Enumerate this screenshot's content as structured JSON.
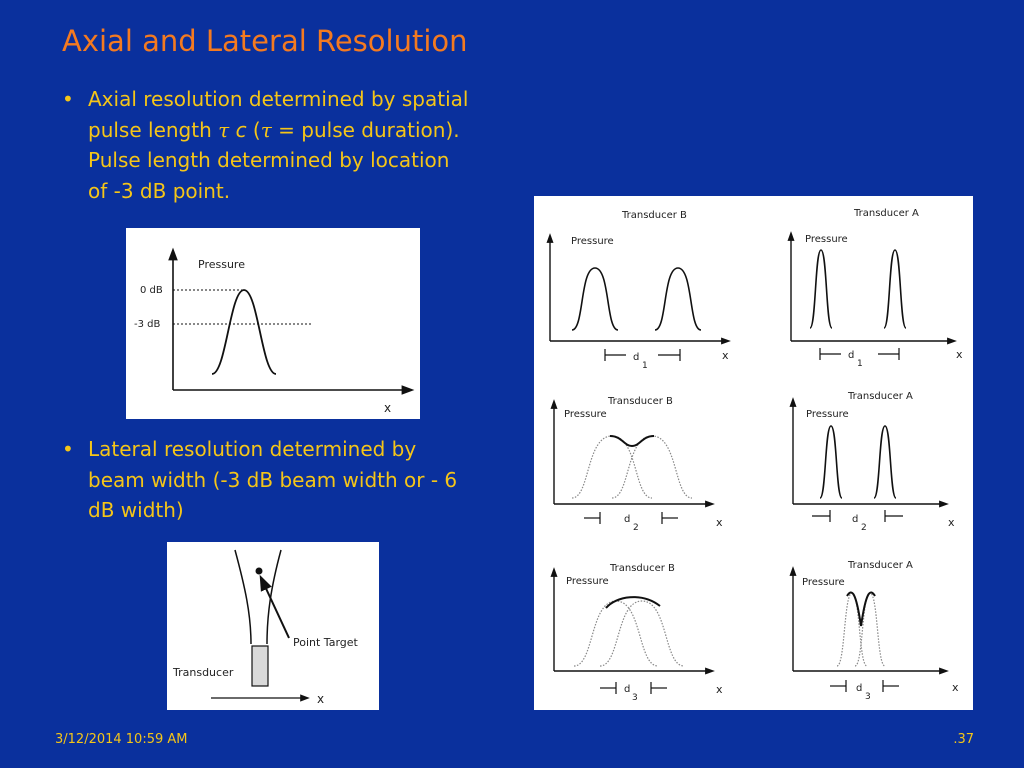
{
  "slide": {
    "title": "Axial and Lateral Resolution",
    "bullets": [
      {
        "marker": "•",
        "line1": "Axial resolution determined by spatial",
        "line2_prefix": "pulse length ",
        "tau": "τ",
        "c": "c",
        "line2_mid": " (",
        "tau2": "τ",
        "line2_suffix": " = pulse duration).",
        "line3": "Pulse length determined by location",
        "line4": "of -3 dB point."
      },
      {
        "marker": "•",
        "line1": "Lateral resolution determined by",
        "line2": "beam width (-3 dB beam width or - 6",
        "line3": "dB width)"
      }
    ],
    "footer": {
      "date": "3/12/2014 10:59 AM",
      "page": ".37"
    }
  },
  "figure_axial": {
    "ylabel": "Pressure",
    "xlabel": "x",
    "level_0db": "0 dB",
    "level_3db": "-3 dB"
  },
  "figure_lateral": {
    "transducer_label": "Transducer",
    "target_label": "Point Target",
    "xlabel": "x"
  },
  "figure_transducers": {
    "rows": [
      {
        "left_title": "Transducer B",
        "right_title": "Transducer A",
        "ylabel": "Pressure",
        "xlabel": "x",
        "dist": "d",
        "sub": "1"
      },
      {
        "left_title": "Transducer B",
        "right_title": "Transducer A",
        "ylabel": "Pressure",
        "xlabel": "x",
        "dist": "d",
        "sub": "2"
      },
      {
        "left_title": "Transducer B",
        "right_title": "Transducer A",
        "ylabel": "Pressure",
        "xlabel": "x",
        "dist": "d",
        "sub": "3"
      }
    ]
  }
}
